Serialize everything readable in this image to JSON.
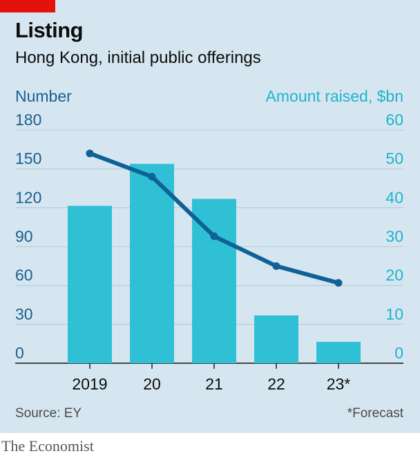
{
  "header": {
    "title": "Listing",
    "subtitle": "Hong Kong, initial public offerings"
  },
  "footer": {
    "source": "Source: EY",
    "note": "*Forecast"
  },
  "brand": "The Economist",
  "colors": {
    "panel": "#d6e6f0",
    "bar": "#30c0d6",
    "line": "#0f6196",
    "left_axis": "#1a5f8e",
    "right_axis": "#1eb4cc",
    "gridline": "#b9cfdc",
    "accent": "#e3120b"
  },
  "chart_data": {
    "type": "bar",
    "categories": [
      "2019",
      "20",
      "21",
      "22",
      "23*"
    ],
    "left_axis": {
      "label": "Number",
      "range": [
        0,
        180
      ],
      "ticks": [
        "0",
        "30",
        "60",
        "90",
        "120",
        "150",
        "180"
      ]
    },
    "right_axis": {
      "label": "Amount raised, $bn",
      "range": [
        0,
        60
      ],
      "ticks": [
        "0",
        "10",
        "20",
        "30",
        "40",
        "50",
        "60"
      ]
    },
    "series": [
      {
        "name": "Amount raised, $bn",
        "type": "bar",
        "axis": "right",
        "values": [
          40.5,
          51.3,
          42.3,
          12.3,
          5.5
        ]
      },
      {
        "name": "Number",
        "type": "line",
        "axis": "left",
        "values": [
          162,
          144,
          98,
          75,
          62
        ]
      }
    ],
    "grid": true
  }
}
